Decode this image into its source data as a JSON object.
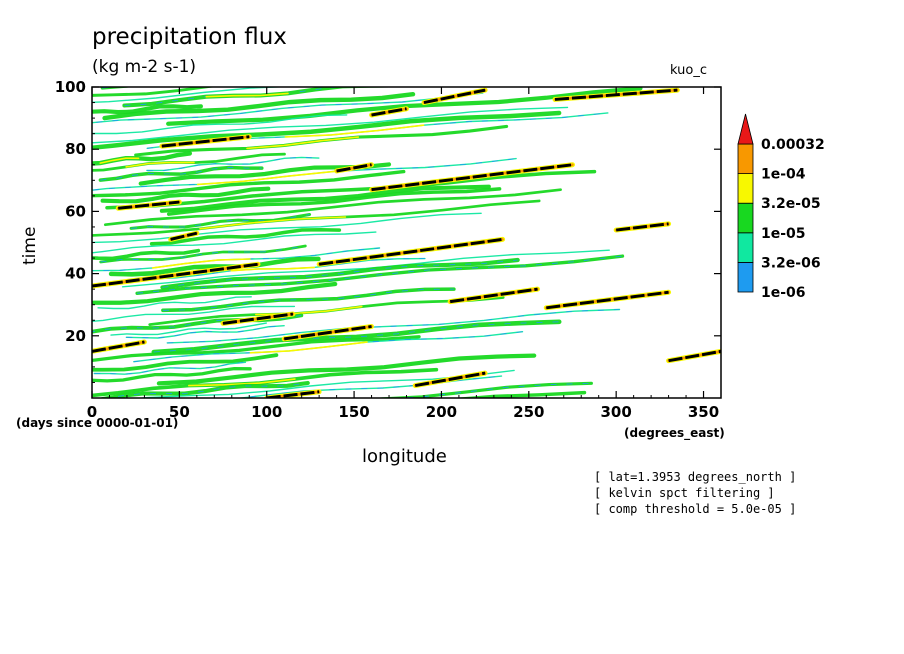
{
  "chart_data": {
    "type": "heatmap",
    "title": "precipitation flux",
    "units": "(kg m-2 s-1)",
    "dataset_label": "kuo_c",
    "xlabel": "longitude",
    "ylabel": "time",
    "x_units_label": "(degrees_east)",
    "y_units_label": "(days since 0000-01-01)",
    "xlim": [
      0,
      360
    ],
    "ylim": [
      0,
      100
    ],
    "x_ticks": [
      0,
      50,
      100,
      150,
      200,
      250,
      300,
      350
    ],
    "y_ticks": [
      20,
      40,
      60,
      80,
      100
    ],
    "colorbar": {
      "levels": [
        "1e-06",
        "3.2e-06",
        "1e-05",
        "3.2e-05",
        "1e-04",
        "0.00032"
      ],
      "colors": [
        "#1e9bf0",
        "#10e8a0",
        "#18d820",
        "#f8f800",
        "#f89800",
        "#e81818"
      ]
    },
    "threshold_color": "#000000",
    "annotations": [
      "[ lat=1.3953 degrees_north ]",
      "[ kelvin spct filtering ]",
      "[ comp threshold = 5.0e-05 ]"
    ],
    "waves_description": "eastward-propagating bands of precipitation flux drifting with longitude over time",
    "intense_segments": [
      {
        "x0": 0,
        "y0": 15,
        "x1": 30,
        "y1": 18
      },
      {
        "x0": 0,
        "y0": 36,
        "x1": 95,
        "y1": 43
      },
      {
        "x0": 130,
        "y0": 43,
        "x1": 235,
        "y1": 51
      },
      {
        "x0": 160,
        "y0": 67,
        "x1": 275,
        "y1": 75
      },
      {
        "x0": 190,
        "y0": 95,
        "x1": 225,
        "y1": 99
      },
      {
        "x0": 265,
        "y0": 96,
        "x1": 335,
        "y1": 99
      },
      {
        "x0": 40,
        "y0": 81,
        "x1": 90,
        "y1": 84
      },
      {
        "x0": 75,
        "y0": 24,
        "x1": 115,
        "y1": 27
      },
      {
        "x0": 110,
        "y0": 19,
        "x1": 160,
        "y1": 23
      },
      {
        "x0": 205,
        "y0": 31,
        "x1": 255,
        "y1": 35
      },
      {
        "x0": 260,
        "y0": 29,
        "x1": 330,
        "y1": 34
      },
      {
        "x0": 185,
        "y0": 4,
        "x1": 225,
        "y1": 8
      },
      {
        "x0": 100,
        "y0": 0,
        "x1": 130,
        "y1": 2
      },
      {
        "x0": 330,
        "y0": 12,
        "x1": 360,
        "y1": 15
      },
      {
        "x0": 300,
        "y0": 54,
        "x1": 330,
        "y1": 56
      },
      {
        "x0": 15,
        "y0": 61,
        "x1": 50,
        "y1": 63
      },
      {
        "x0": 45,
        "y0": 51,
        "x1": 60,
        "y1": 53
      },
      {
        "x0": 140,
        "y0": 73,
        "x1": 160,
        "y1": 75
      },
      {
        "x0": 160,
        "y0": 91,
        "x1": 180,
        "y1": 93
      }
    ]
  }
}
